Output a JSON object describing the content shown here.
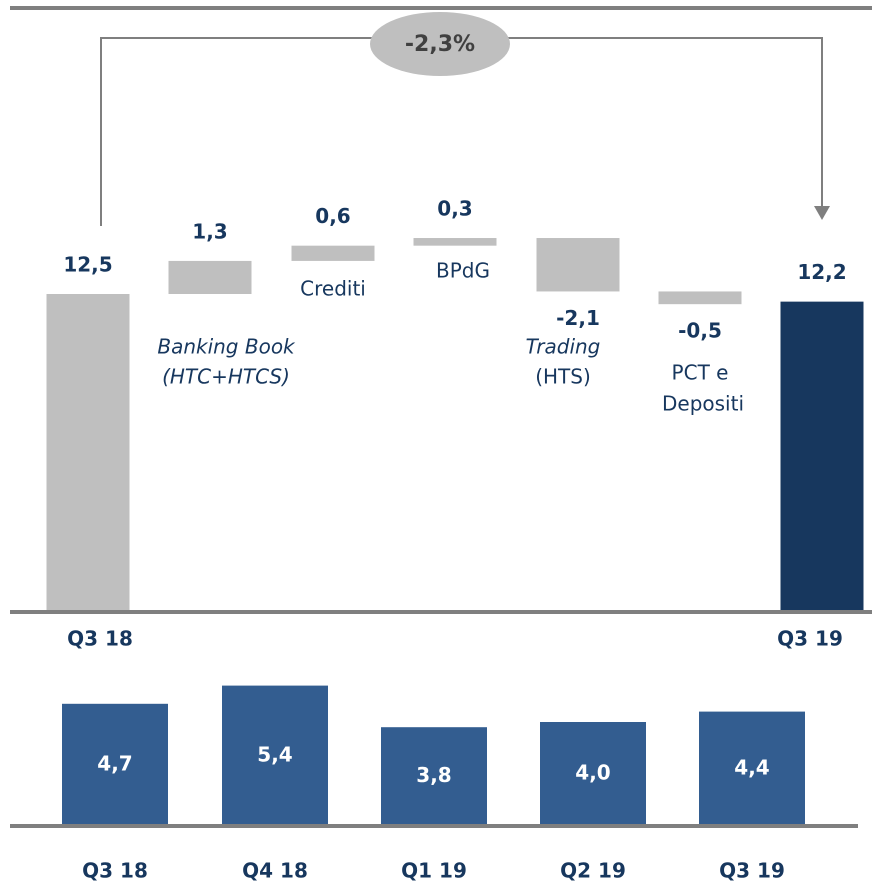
{
  "chart_data": [
    {
      "type": "waterfall",
      "categories": [
        [
          "Q3 18"
        ],
        [
          "Banking Book",
          "(HTC+HTCS)"
        ],
        [
          "Crediti"
        ],
        [
          "BPdG"
        ],
        [
          "Trading",
          "(HTS)"
        ],
        [
          "PCT e",
          "Depositi"
        ],
        [
          "Q3 19"
        ]
      ],
      "measures": [
        "absolute",
        "relative",
        "relative",
        "relative",
        "relative",
        "relative",
        "absolute"
      ],
      "values": [
        12.5,
        1.3,
        0.6,
        0.3,
        -2.1,
        -0.5,
        12.2
      ],
      "value_labels": [
        "12,5",
        "1,3",
        "0,6",
        "0,3",
        "-2,1",
        "-0,5",
        "12,2"
      ],
      "colors": [
        "#bfbfbf",
        "#bfbfbf",
        "#bfbfbf",
        "#bfbfbf",
        "#bfbfbf",
        "#bfbfbf",
        "#17375e"
      ],
      "annotation": "-2,3%"
    },
    {
      "type": "bar",
      "categories": [
        "Q3 18",
        "Q4 18",
        "Q1 19",
        "Q2 19",
        "Q3 19"
      ],
      "values": [
        4.7,
        5.4,
        3.8,
        4.0,
        4.4
      ],
      "value_labels": [
        "4,7",
        "5,4",
        "3,8",
        "4,0",
        "4,4"
      ],
      "color": "#335d90"
    }
  ]
}
